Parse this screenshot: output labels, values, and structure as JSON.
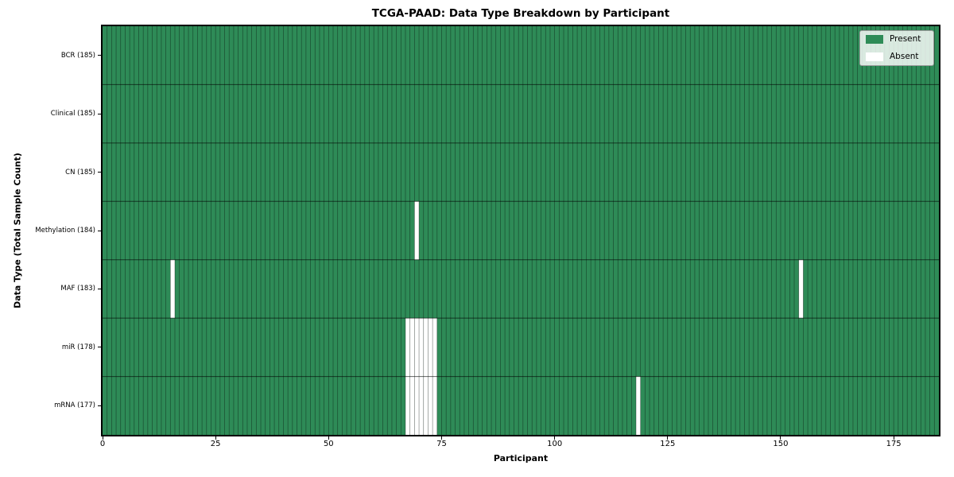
{
  "chart_data": {
    "type": "heatmap",
    "title": "TCGA-PAAD: Data Type Breakdown by Participant",
    "xlabel": "Participant",
    "ylabel": "Data Type (Total Sample Count)",
    "n_participants": 185,
    "x_range": [
      0,
      185
    ],
    "x_ticks": [
      0,
      25,
      50,
      75,
      100,
      125,
      150,
      175
    ],
    "grid_on": true,
    "legend_position": "upper right",
    "colors": {
      "present": "#2e8b57",
      "absent": "#ffffff"
    },
    "legend_items": [
      {
        "label": "Present",
        "color": "#2e8b57"
      },
      {
        "label": "Absent",
        "color": "#ffffff"
      }
    ],
    "rows": [
      {
        "label": "BCR (185)",
        "data_type": "BCR",
        "present_count": 185,
        "absent_participants": []
      },
      {
        "label": "Clinical (185)",
        "data_type": "Clinical",
        "present_count": 185,
        "absent_participants": []
      },
      {
        "label": "CN (185)",
        "data_type": "CN",
        "present_count": 185,
        "absent_participants": []
      },
      {
        "label": "Methylation (184)",
        "data_type": "Methylation",
        "present_count": 184,
        "absent_participants": [
          69
        ]
      },
      {
        "label": "MAF (183)",
        "data_type": "MAF",
        "present_count": 183,
        "absent_participants": [
          15,
          154
        ]
      },
      {
        "label": "miR (178)",
        "data_type": "miR",
        "present_count": 178,
        "absent_participants": [
          67,
          68,
          69,
          70,
          71,
          72,
          73
        ]
      },
      {
        "label": "mRNA (177)",
        "data_type": "mRNA",
        "present_count": 177,
        "absent_participants": [
          67,
          68,
          69,
          70,
          71,
          72,
          73,
          118
        ]
      }
    ]
  }
}
